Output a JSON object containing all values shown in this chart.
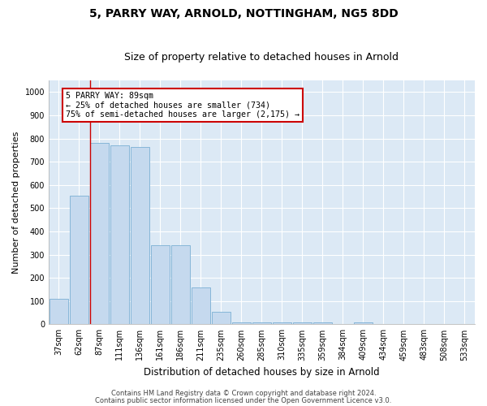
{
  "title": "5, PARRY WAY, ARNOLD, NOTTINGHAM, NG5 8DD",
  "subtitle": "Size of property relative to detached houses in Arnold",
  "xlabel": "Distribution of detached houses by size in Arnold",
  "ylabel": "Number of detached properties",
  "categories": [
    "37sqm",
    "62sqm",
    "87sqm",
    "111sqm",
    "136sqm",
    "161sqm",
    "186sqm",
    "211sqm",
    "235sqm",
    "260sqm",
    "285sqm",
    "310sqm",
    "335sqm",
    "359sqm",
    "384sqm",
    "409sqm",
    "434sqm",
    "459sqm",
    "483sqm",
    "508sqm",
    "533sqm"
  ],
  "values": [
    110,
    555,
    780,
    770,
    765,
    340,
    340,
    160,
    55,
    10,
    10,
    10,
    10,
    10,
    0,
    10,
    0,
    0,
    0,
    0,
    0
  ],
  "bar_color": "#c5d9ee",
  "bar_edge_color": "#7bafd4",
  "vline_x": 2.5,
  "vline_color": "#cc0000",
  "annotation_box_text": "5 PARRY WAY: 89sqm\n← 25% of detached houses are smaller (734)\n75% of semi-detached houses are larger (2,175) →",
  "annotation_box_color": "#ffffff",
  "annotation_box_edgecolor": "#cc0000",
  "ylim": [
    0,
    1050
  ],
  "yticks": [
    0,
    100,
    200,
    300,
    400,
    500,
    600,
    700,
    800,
    900,
    1000
  ],
  "fig_bg": "#ffffff",
  "plot_bg": "#dce9f5",
  "grid_color": "#ffffff",
  "footer_line1": "Contains HM Land Registry data © Crown copyright and database right 2024.",
  "footer_line2": "Contains public sector information licensed under the Open Government Licence v3.0.",
  "title_fontsize": 10,
  "subtitle_fontsize": 9,
  "xlabel_fontsize": 8.5,
  "ylabel_fontsize": 8,
  "tick_fontsize": 7,
  "footer_fontsize": 6
}
